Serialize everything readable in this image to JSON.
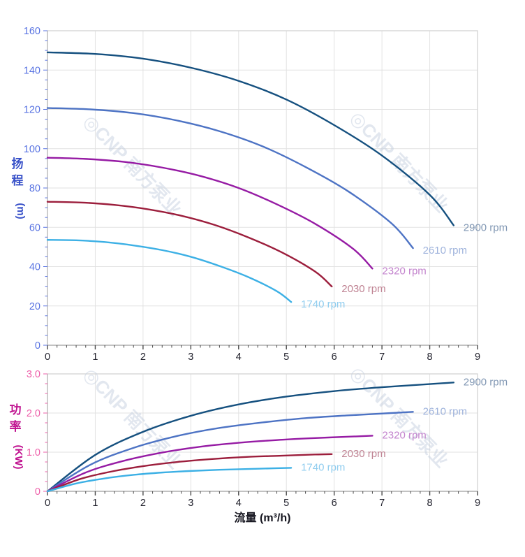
{
  "watermark": {
    "text": "◎CNP 南方泵业",
    "color": "#c6d0e0",
    "opacity": 0.5
  },
  "chart_data": [
    {
      "type": "line",
      "title": "",
      "xlabel": "",
      "ylabel": "扬程 (m)",
      "xlim": [
        0,
        9
      ],
      "ylim": [
        0,
        160
      ],
      "x_major": 1,
      "x_minor": 0.2,
      "y_major": 20,
      "y_minor": 5,
      "x_tick_labels": [
        "0",
        "1",
        "2",
        "3",
        "4",
        "5",
        "6",
        "7",
        "8",
        "9"
      ],
      "y_tick_labels": [
        "0",
        "20",
        "40",
        "60",
        "80",
        "100",
        "120",
        "140",
        "160"
      ],
      "grid": true,
      "legend_position": "curve-end",
      "axis_title_color": "#3750c8",
      "tick_label_color": "#5873e2",
      "label_dy": 8,
      "series": [
        {
          "name": "2900 rpm",
          "color": "#15507f",
          "label_color": "#8298b4",
          "x": [
            0,
            1,
            2,
            3,
            4,
            5,
            6,
            7,
            8,
            8.5
          ],
          "y": [
            149,
            148.2,
            145.8,
            141.2,
            134.5,
            125,
            112,
            96.5,
            76.5,
            61
          ]
        },
        {
          "name": "2610 rpm",
          "color": "#4d73c4",
          "label_color": "#9fb3dc",
          "x": [
            0,
            0.9,
            1.8,
            2.7,
            3.6,
            4.5,
            5.4,
            6.3,
            7.2,
            7.65
          ],
          "y": [
            120.7,
            120,
            118.1,
            114.4,
            108.9,
            101.2,
            90.7,
            78.2,
            62,
            49.4
          ]
        },
        {
          "name": "2320 rpm",
          "color": "#961ba4",
          "label_color": "#c383cd",
          "x": [
            0,
            0.8,
            1.6,
            2.4,
            3.2,
            4,
            4.8,
            5.6,
            6.4,
            6.8
          ],
          "y": [
            95.4,
            94.8,
            93.3,
            90.4,
            86.1,
            80,
            71.7,
            61.8,
            49,
            39
          ]
        },
        {
          "name": "2030 rpm",
          "color": "#9c1e3c",
          "label_color": "#c08494",
          "x": [
            0,
            0.7,
            1.4,
            2.1,
            2.8,
            3.5,
            4.2,
            4.9,
            5.6,
            5.95
          ],
          "y": [
            73,
            72.6,
            71.4,
            69.2,
            65.9,
            61.2,
            54.9,
            47.3,
            37.5,
            29.9
          ]
        },
        {
          "name": "1740 rpm",
          "color": "#3cb0e5",
          "label_color": "#90cdef",
          "x": [
            0,
            0.6,
            1.2,
            1.8,
            2.4,
            3,
            3.6,
            4.2,
            4.8,
            5.1
          ],
          "y": [
            53.6,
            53.4,
            52.5,
            50.8,
            48.4,
            45,
            40.3,
            34.7,
            27.5,
            22
          ]
        }
      ]
    },
    {
      "type": "line",
      "title": "",
      "xlabel": "流量 (m³/h)",
      "ylabel": "功率 (KW)",
      "xlim": [
        0,
        9
      ],
      "ylim": [
        0,
        3
      ],
      "x_major": 1,
      "x_minor": 0.2,
      "y_major": 1,
      "y_minor": 0.25,
      "x_tick_labels": [
        "0",
        "1",
        "2",
        "3",
        "4",
        "5",
        "6",
        "7",
        "8",
        "9"
      ],
      "y_tick_labels": [
        "0",
        "1.0",
        "2.0",
        "3.0"
      ],
      "grid": true,
      "legend_position": "curve-end",
      "axis_title_color": "#c01390",
      "tick_label_color": "#ee5fa9",
      "label_dy": 4,
      "series": [
        {
          "name": "2900 rpm",
          "color": "#15507f",
          "label_color": "#8298b4",
          "x": [
            0,
            1,
            2,
            3,
            4,
            5,
            6,
            7,
            8,
            8.5
          ],
          "y": [
            0,
            0.93,
            1.52,
            1.93,
            2.22,
            2.42,
            2.56,
            2.66,
            2.74,
            2.78
          ]
        },
        {
          "name": "2610 rpm",
          "color": "#4d73c4",
          "label_color": "#9fb3dc",
          "x": [
            0,
            0.9,
            1.8,
            2.7,
            3.6,
            4.5,
            5.4,
            6.3,
            7.2,
            7.65
          ],
          "y": [
            0,
            0.68,
            1.11,
            1.41,
            1.62,
            1.76,
            1.87,
            1.94,
            2,
            2.03
          ]
        },
        {
          "name": "2320 rpm",
          "color": "#961ba4",
          "label_color": "#c383cd",
          "x": [
            0,
            0.8,
            1.6,
            2.4,
            3.2,
            4,
            4.8,
            5.6,
            6.4,
            6.8
          ],
          "y": [
            0,
            0.48,
            0.78,
            0.99,
            1.14,
            1.24,
            1.31,
            1.36,
            1.4,
            1.42
          ]
        },
        {
          "name": "2030 rpm",
          "color": "#9c1e3c",
          "label_color": "#c08494",
          "x": [
            0,
            0.7,
            1.4,
            2.1,
            2.8,
            3.5,
            4.2,
            4.9,
            5.6,
            5.95
          ],
          "y": [
            0,
            0.32,
            0.52,
            0.66,
            0.76,
            0.83,
            0.88,
            0.91,
            0.94,
            0.95
          ]
        },
        {
          "name": "1740 rpm",
          "color": "#3cb0e5",
          "label_color": "#90cdef",
          "x": [
            0,
            0.6,
            1.2,
            1.8,
            2.4,
            3,
            3.6,
            4.2,
            4.8,
            5.1
          ],
          "y": [
            0,
            0.2,
            0.33,
            0.42,
            0.48,
            0.52,
            0.55,
            0.57,
            0.59,
            0.6
          ]
        }
      ]
    }
  ],
  "x_axis": {
    "title": "流量 (m³/h)",
    "title_color": "#15151f",
    "tick_label_color": "#23232e"
  },
  "frame": {
    "grid_color": "#e2e2e2",
    "border_color": "#d6d6d6",
    "axis_color": "#c2c2c2",
    "x_tick_color": "#4a4a4a"
  }
}
